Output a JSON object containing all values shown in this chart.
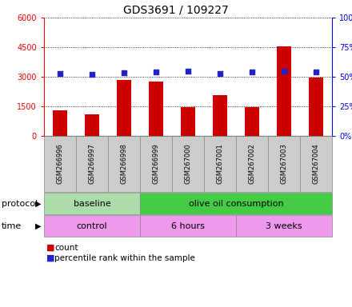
{
  "title": "GDS3691 / 109227",
  "samples": [
    "GSM266996",
    "GSM266997",
    "GSM266998",
    "GSM266999",
    "GSM267000",
    "GSM267001",
    "GSM267002",
    "GSM267003",
    "GSM267004"
  ],
  "counts": [
    1300,
    1100,
    2850,
    2750,
    1450,
    2050,
    1450,
    4550,
    2950
  ],
  "percentile_ranks": [
    53,
    52,
    53.5,
    54,
    54.5,
    53,
    54,
    55,
    54
  ],
  "ylim_left": [
    0,
    6000
  ],
  "ylim_right": [
    0,
    100
  ],
  "yticks_left": [
    0,
    1500,
    3000,
    4500,
    6000
  ],
  "yticks_right": [
    0,
    25,
    50,
    75,
    100
  ],
  "bar_color": "#cc0000",
  "dot_color": "#2222cc",
  "protocol_labels": [
    {
      "text": "baseline",
      "start": 0,
      "end": 2,
      "color": "#aaddaa"
    },
    {
      "text": "olive oil consumption",
      "start": 3,
      "end": 8,
      "color": "#44cc44"
    }
  ],
  "time_labels": [
    {
      "text": "control",
      "start": 0,
      "end": 2,
      "color": "#ee99ee"
    },
    {
      "text": "6 hours",
      "start": 3,
      "end": 5,
      "color": "#ee99ee"
    },
    {
      "text": "3 weeks",
      "start": 6,
      "end": 8,
      "color": "#ee99ee"
    }
  ],
  "protocol_divider": 2.5,
  "time_divider1": 2.5,
  "time_divider2": 5.5,
  "legend_count_color": "#cc0000",
  "legend_dot_color": "#2222cc",
  "background_color": "#ffffff",
  "plot_bg_color": "#ffffff",
  "label_box_color": "#cccccc",
  "label_box_edge": "#888888"
}
